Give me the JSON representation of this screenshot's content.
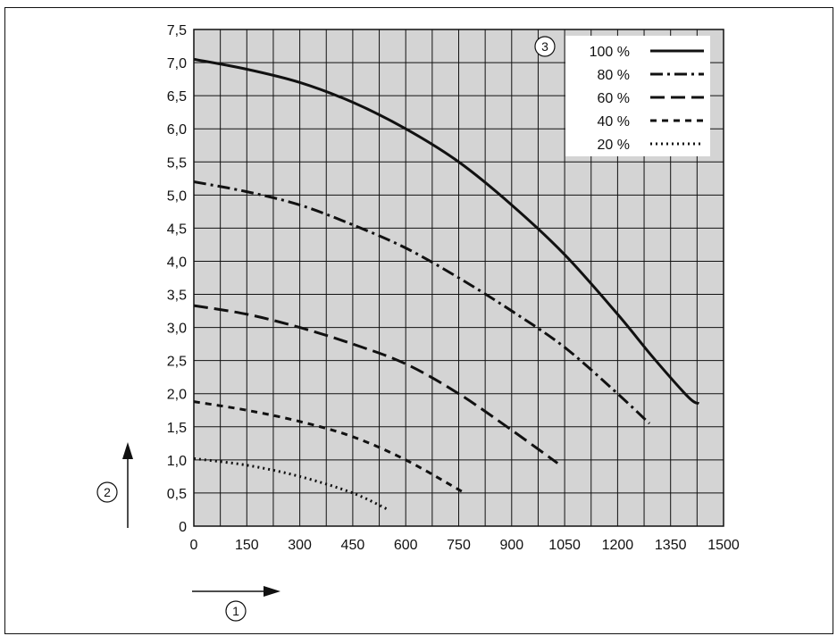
{
  "chart_data": {
    "type": "line",
    "title": "",
    "xlabel": "",
    "ylabel": "",
    "xlim": [
      0,
      1500
    ],
    "ylim": [
      0,
      7.5
    ],
    "grid": true,
    "legend_position": "top-right",
    "x_ticks": [
      "0",
      "150",
      "300",
      "450",
      "600",
      "750",
      "900",
      "1050",
      "1200",
      "1350",
      "1500"
    ],
    "y_ticks": [
      "0",
      "0,5",
      "1,0",
      "1,5",
      "2,0",
      "2,5",
      "3,0",
      "3,5",
      "4,0",
      "4,5",
      "5,0",
      "5,5",
      "6,0",
      "6,5",
      "7,0",
      "7,5"
    ],
    "axis_markers": {
      "x": "①",
      "y": "②",
      "legend": "③"
    },
    "series": [
      {
        "name": "100 %",
        "style": "solid",
        "x": [
          0,
          150,
          300,
          450,
          600,
          750,
          900,
          1050,
          1200,
          1300,
          1400,
          1430
        ],
        "y": [
          7.05,
          6.9,
          6.7,
          6.4,
          6.0,
          5.5,
          4.85,
          4.1,
          3.2,
          2.55,
          1.95,
          1.85
        ]
      },
      {
        "name": "80 %",
        "style": "dashdot",
        "x": [
          0,
          150,
          300,
          450,
          600,
          750,
          900,
          1050,
          1200,
          1290
        ],
        "y": [
          5.2,
          5.05,
          4.85,
          4.55,
          4.2,
          3.75,
          3.25,
          2.7,
          2.0,
          1.55
        ]
      },
      {
        "name": "60 %",
        "style": "dashed",
        "x": [
          0,
          150,
          300,
          450,
          600,
          750,
          900,
          1030
        ],
        "y": [
          3.33,
          3.2,
          3.0,
          2.75,
          2.45,
          2.0,
          1.45,
          0.95
        ]
      },
      {
        "name": "40 %",
        "style": "shortdash",
        "x": [
          0,
          150,
          300,
          450,
          600,
          760
        ],
        "y": [
          1.88,
          1.75,
          1.58,
          1.35,
          1.0,
          0.52
        ]
      },
      {
        "name": "20 %",
        "style": "dotted",
        "x": [
          0,
          150,
          300,
          450,
          550
        ],
        "y": [
          1.02,
          0.92,
          0.75,
          0.5,
          0.25
        ]
      }
    ]
  },
  "colors": {
    "plot_bg": "#d4d4d4",
    "grid": "#111111",
    "line": "#111111",
    "legend_bg": "#ffffff"
  }
}
